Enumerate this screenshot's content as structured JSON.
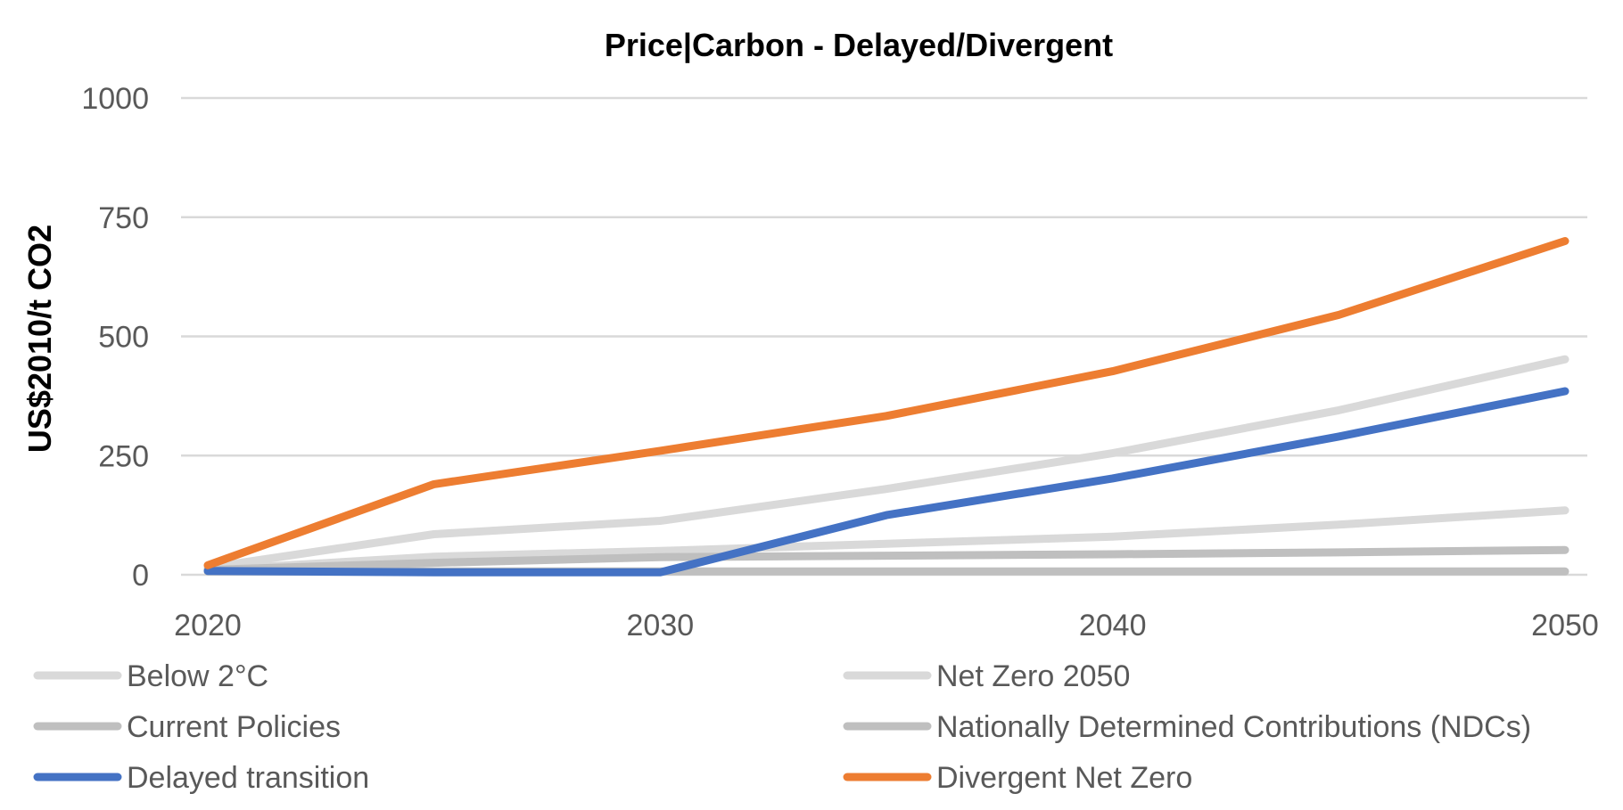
{
  "chart_data": {
    "type": "line",
    "title": "Price|Carbon - Delayed/Divergent",
    "xlabel": "",
    "ylabel": "US$2010/t CO2",
    "x": [
      2020,
      2025,
      2030,
      2035,
      2040,
      2045,
      2050
    ],
    "x_ticks": [
      "2020",
      "2030",
      "2040",
      "2050"
    ],
    "y_ticks": [
      "0",
      "250",
      "500",
      "750",
      "1000"
    ],
    "xlim": [
      2020,
      2050
    ],
    "ylim": [
      0,
      1000
    ],
    "grid": true,
    "legend_position": "bottom",
    "series": [
      {
        "name": "Below 2°C",
        "color": "#d9d9d9",
        "values": [
          10,
          38,
          50,
          65,
          80,
          105,
          135
        ]
      },
      {
        "name": "Net Zero 2050",
        "color": "#d9d9d9",
        "values": [
          15,
          85,
          113,
          180,
          255,
          345,
          452
        ]
      },
      {
        "name": "Current Policies",
        "color": "#bfbfbf",
        "values": [
          7,
          7,
          7,
          7,
          7,
          7,
          7
        ]
      },
      {
        "name": "Nationally Determined Contributions (NDCs)",
        "color": "#bfbfbf",
        "values": [
          10,
          25,
          37,
          40,
          43,
          47,
          52
        ]
      },
      {
        "name": "Delayed transition",
        "color": "#4472c4",
        "values": [
          8,
          5,
          5,
          125,
          202,
          290,
          385
        ]
      },
      {
        "name": "Divergent Net Zero",
        "color": "#ed7d31",
        "values": [
          20,
          190,
          260,
          333,
          427,
          545,
          700
        ]
      }
    ]
  }
}
